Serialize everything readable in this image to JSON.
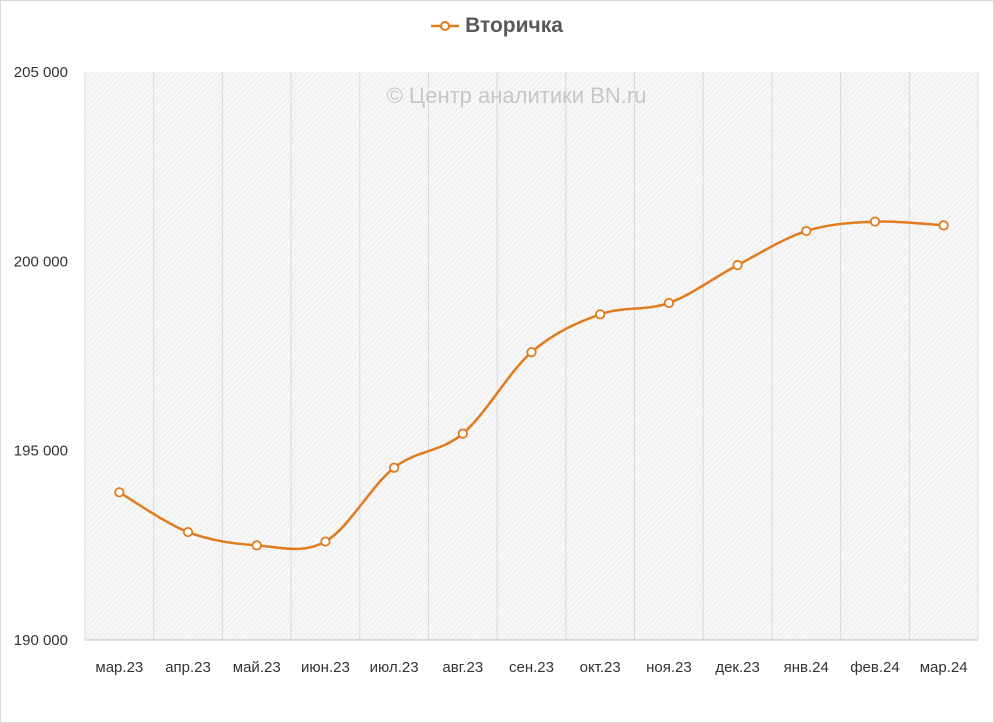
{
  "chart_data": {
    "type": "line",
    "title": "",
    "watermark": "© Центр аналитики BN.ru",
    "legend_position": "top-center",
    "grid": "vertical",
    "categories": [
      "мар.23",
      "апр.23",
      "май.23",
      "июн.23",
      "июл.23",
      "авг.23",
      "сен.23",
      "окт.23",
      "ноя.23",
      "дек.23",
      "янв.24",
      "фев.24",
      "мар.24"
    ],
    "series": [
      {
        "name": "Вторичка",
        "color": "#e07b1e",
        "smooth": true,
        "values": [
          193900,
          192850,
          192500,
          192600,
          194550,
          195450,
          197600,
          198600,
          198900,
          199900,
          200800,
          201050,
          200950
        ]
      }
    ],
    "ylim": [
      190000,
      205000
    ],
    "yticks": [
      190000,
      195000,
      200000,
      205000
    ],
    "ytick_labels": [
      "190 000",
      "195 000",
      "200 000",
      "205 000"
    ],
    "xlabel": "",
    "ylabel": ""
  }
}
